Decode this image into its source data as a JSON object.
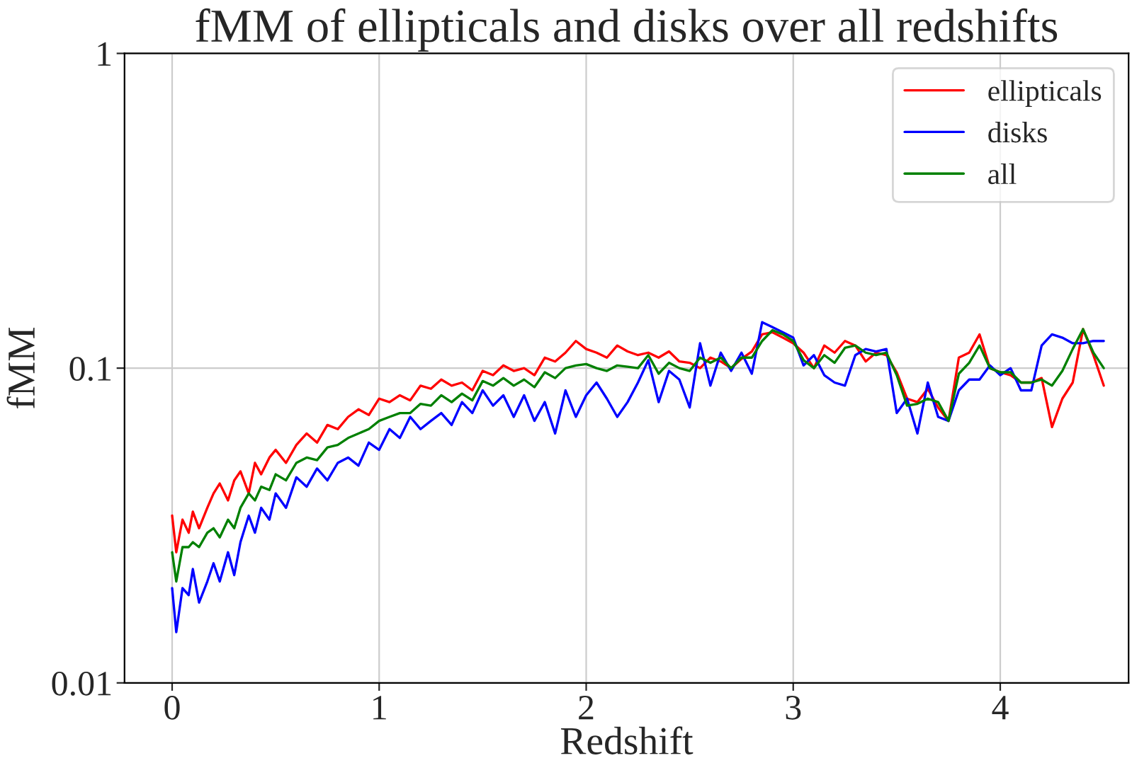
{
  "chart_data": {
    "type": "line",
    "title": "fMM of ellipticals and disks over all redshifts",
    "xlabel": "Redshift",
    "ylabel": "fMM",
    "x": [
      0,
      0.02,
      0.05,
      0.08,
      0.1,
      0.13,
      0.17,
      0.2,
      0.23,
      0.27,
      0.3,
      0.33,
      0.37,
      0.4,
      0.43,
      0.47,
      0.5,
      0.55,
      0.6,
      0.65,
      0.7,
      0.75,
      0.8,
      0.85,
      0.9,
      0.95,
      1.0,
      1.05,
      1.1,
      1.15,
      1.2,
      1.25,
      1.3,
      1.35,
      1.4,
      1.45,
      1.5,
      1.55,
      1.6,
      1.65,
      1.7,
      1.75,
      1.8,
      1.85,
      1.9,
      1.95,
      2.0,
      2.05,
      2.1,
      2.15,
      2.2,
      2.25,
      2.3,
      2.35,
      2.4,
      2.45,
      2.5,
      2.55,
      2.6,
      2.65,
      2.7,
      2.75,
      2.8,
      2.85,
      2.9,
      2.95,
      3.0,
      3.05,
      3.1,
      3.15,
      3.2,
      3.25,
      3.3,
      3.35,
      3.4,
      3.45,
      3.5,
      3.55,
      3.6,
      3.65,
      3.7,
      3.75,
      3.8,
      3.85,
      3.9,
      3.95,
      4.0,
      4.05,
      4.1,
      4.15,
      4.2,
      4.25,
      4.3,
      4.35,
      4.4,
      4.45,
      4.5
    ],
    "series": [
      {
        "name": "ellipticals",
        "color": "#ff0000",
        "values": [
          0.034,
          0.026,
          0.033,
          0.03,
          0.035,
          0.031,
          0.036,
          0.04,
          0.043,
          0.038,
          0.044,
          0.047,
          0.04,
          0.05,
          0.046,
          0.052,
          0.055,
          0.05,
          0.057,
          0.062,
          0.058,
          0.066,
          0.064,
          0.07,
          0.074,
          0.071,
          0.08,
          0.078,
          0.082,
          0.079,
          0.088,
          0.086,
          0.092,
          0.088,
          0.09,
          0.085,
          0.098,
          0.095,
          0.102,
          0.098,
          0.1,
          0.095,
          0.108,
          0.105,
          0.112,
          0.122,
          0.115,
          0.112,
          0.108,
          0.118,
          0.113,
          0.11,
          0.112,
          0.108,
          0.113,
          0.105,
          0.104,
          0.1,
          0.108,
          0.105,
          0.1,
          0.107,
          0.113,
          0.128,
          0.13,
          0.125,
          0.12,
          0.112,
          0.1,
          0.118,
          0.112,
          0.122,
          0.118,
          0.105,
          0.112,
          0.11,
          0.097,
          0.08,
          0.078,
          0.086,
          0.075,
          0.068,
          0.108,
          0.112,
          0.128,
          0.1,
          0.097,
          0.095,
          0.09,
          0.09,
          0.093,
          0.065,
          0.08,
          0.09,
          0.133,
          0.11,
          0.088
        ]
      },
      {
        "name": "disks",
        "color": "#0000ff",
        "values": [
          0.02,
          0.0145,
          0.02,
          0.019,
          0.023,
          0.018,
          0.021,
          0.024,
          0.021,
          0.026,
          0.022,
          0.028,
          0.034,
          0.03,
          0.036,
          0.033,
          0.04,
          0.036,
          0.045,
          0.042,
          0.048,
          0.044,
          0.05,
          0.052,
          0.049,
          0.058,
          0.055,
          0.064,
          0.06,
          0.07,
          0.064,
          0.068,
          0.072,
          0.066,
          0.078,
          0.072,
          0.085,
          0.076,
          0.082,
          0.07,
          0.082,
          0.068,
          0.078,
          0.062,
          0.085,
          0.07,
          0.082,
          0.09,
          0.08,
          0.07,
          0.078,
          0.09,
          0.106,
          0.078,
          0.098,
          0.092,
          0.075,
          0.12,
          0.088,
          0.112,
          0.098,
          0.112,
          0.096,
          0.14,
          0.135,
          0.13,
          0.125,
          0.102,
          0.11,
          0.095,
          0.09,
          0.088,
          0.11,
          0.115,
          0.113,
          0.115,
          0.072,
          0.08,
          0.062,
          0.09,
          0.07,
          0.068,
          0.085,
          0.092,
          0.092,
          0.102,
          0.095,
          0.1,
          0.085,
          0.085,
          0.118,
          0.128,
          0.125,
          0.12,
          0.12,
          0.122,
          0.122
        ]
      },
      {
        "name": "all",
        "color": "#008000",
        "values": [
          0.026,
          0.021,
          0.027,
          0.027,
          0.028,
          0.027,
          0.03,
          0.031,
          0.029,
          0.033,
          0.031,
          0.036,
          0.04,
          0.038,
          0.042,
          0.041,
          0.046,
          0.044,
          0.05,
          0.052,
          0.051,
          0.056,
          0.057,
          0.06,
          0.062,
          0.064,
          0.068,
          0.07,
          0.072,
          0.072,
          0.077,
          0.076,
          0.082,
          0.078,
          0.083,
          0.079,
          0.091,
          0.088,
          0.093,
          0.088,
          0.092,
          0.087,
          0.097,
          0.093,
          0.1,
          0.102,
          0.103,
          0.1,
          0.098,
          0.102,
          0.101,
          0.1,
          0.11,
          0.096,
          0.104,
          0.1,
          0.098,
          0.108,
          0.104,
          0.108,
          0.1,
          0.108,
          0.108,
          0.122,
          0.132,
          0.128,
          0.122,
          0.106,
          0.1,
          0.11,
          0.104,
          0.116,
          0.118,
          0.112,
          0.11,
          0.112,
          0.095,
          0.076,
          0.077,
          0.08,
          0.078,
          0.068,
          0.096,
          0.104,
          0.118,
          0.1,
          0.097,
          0.097,
          0.09,
          0.09,
          0.092,
          0.088,
          0.098,
          0.115,
          0.133,
          0.112,
          0.1
        ]
      }
    ],
    "log": "y",
    "xlim": [
      -0.23,
      4.62
    ],
    "ylim": [
      0.01,
      1
    ],
    "xticks": [
      0,
      1,
      2,
      3,
      4
    ],
    "yticks": [
      0.01,
      0.1,
      1
    ],
    "grid": true,
    "legend": "top right",
    "line_style": "solid",
    "marker": "none"
  }
}
